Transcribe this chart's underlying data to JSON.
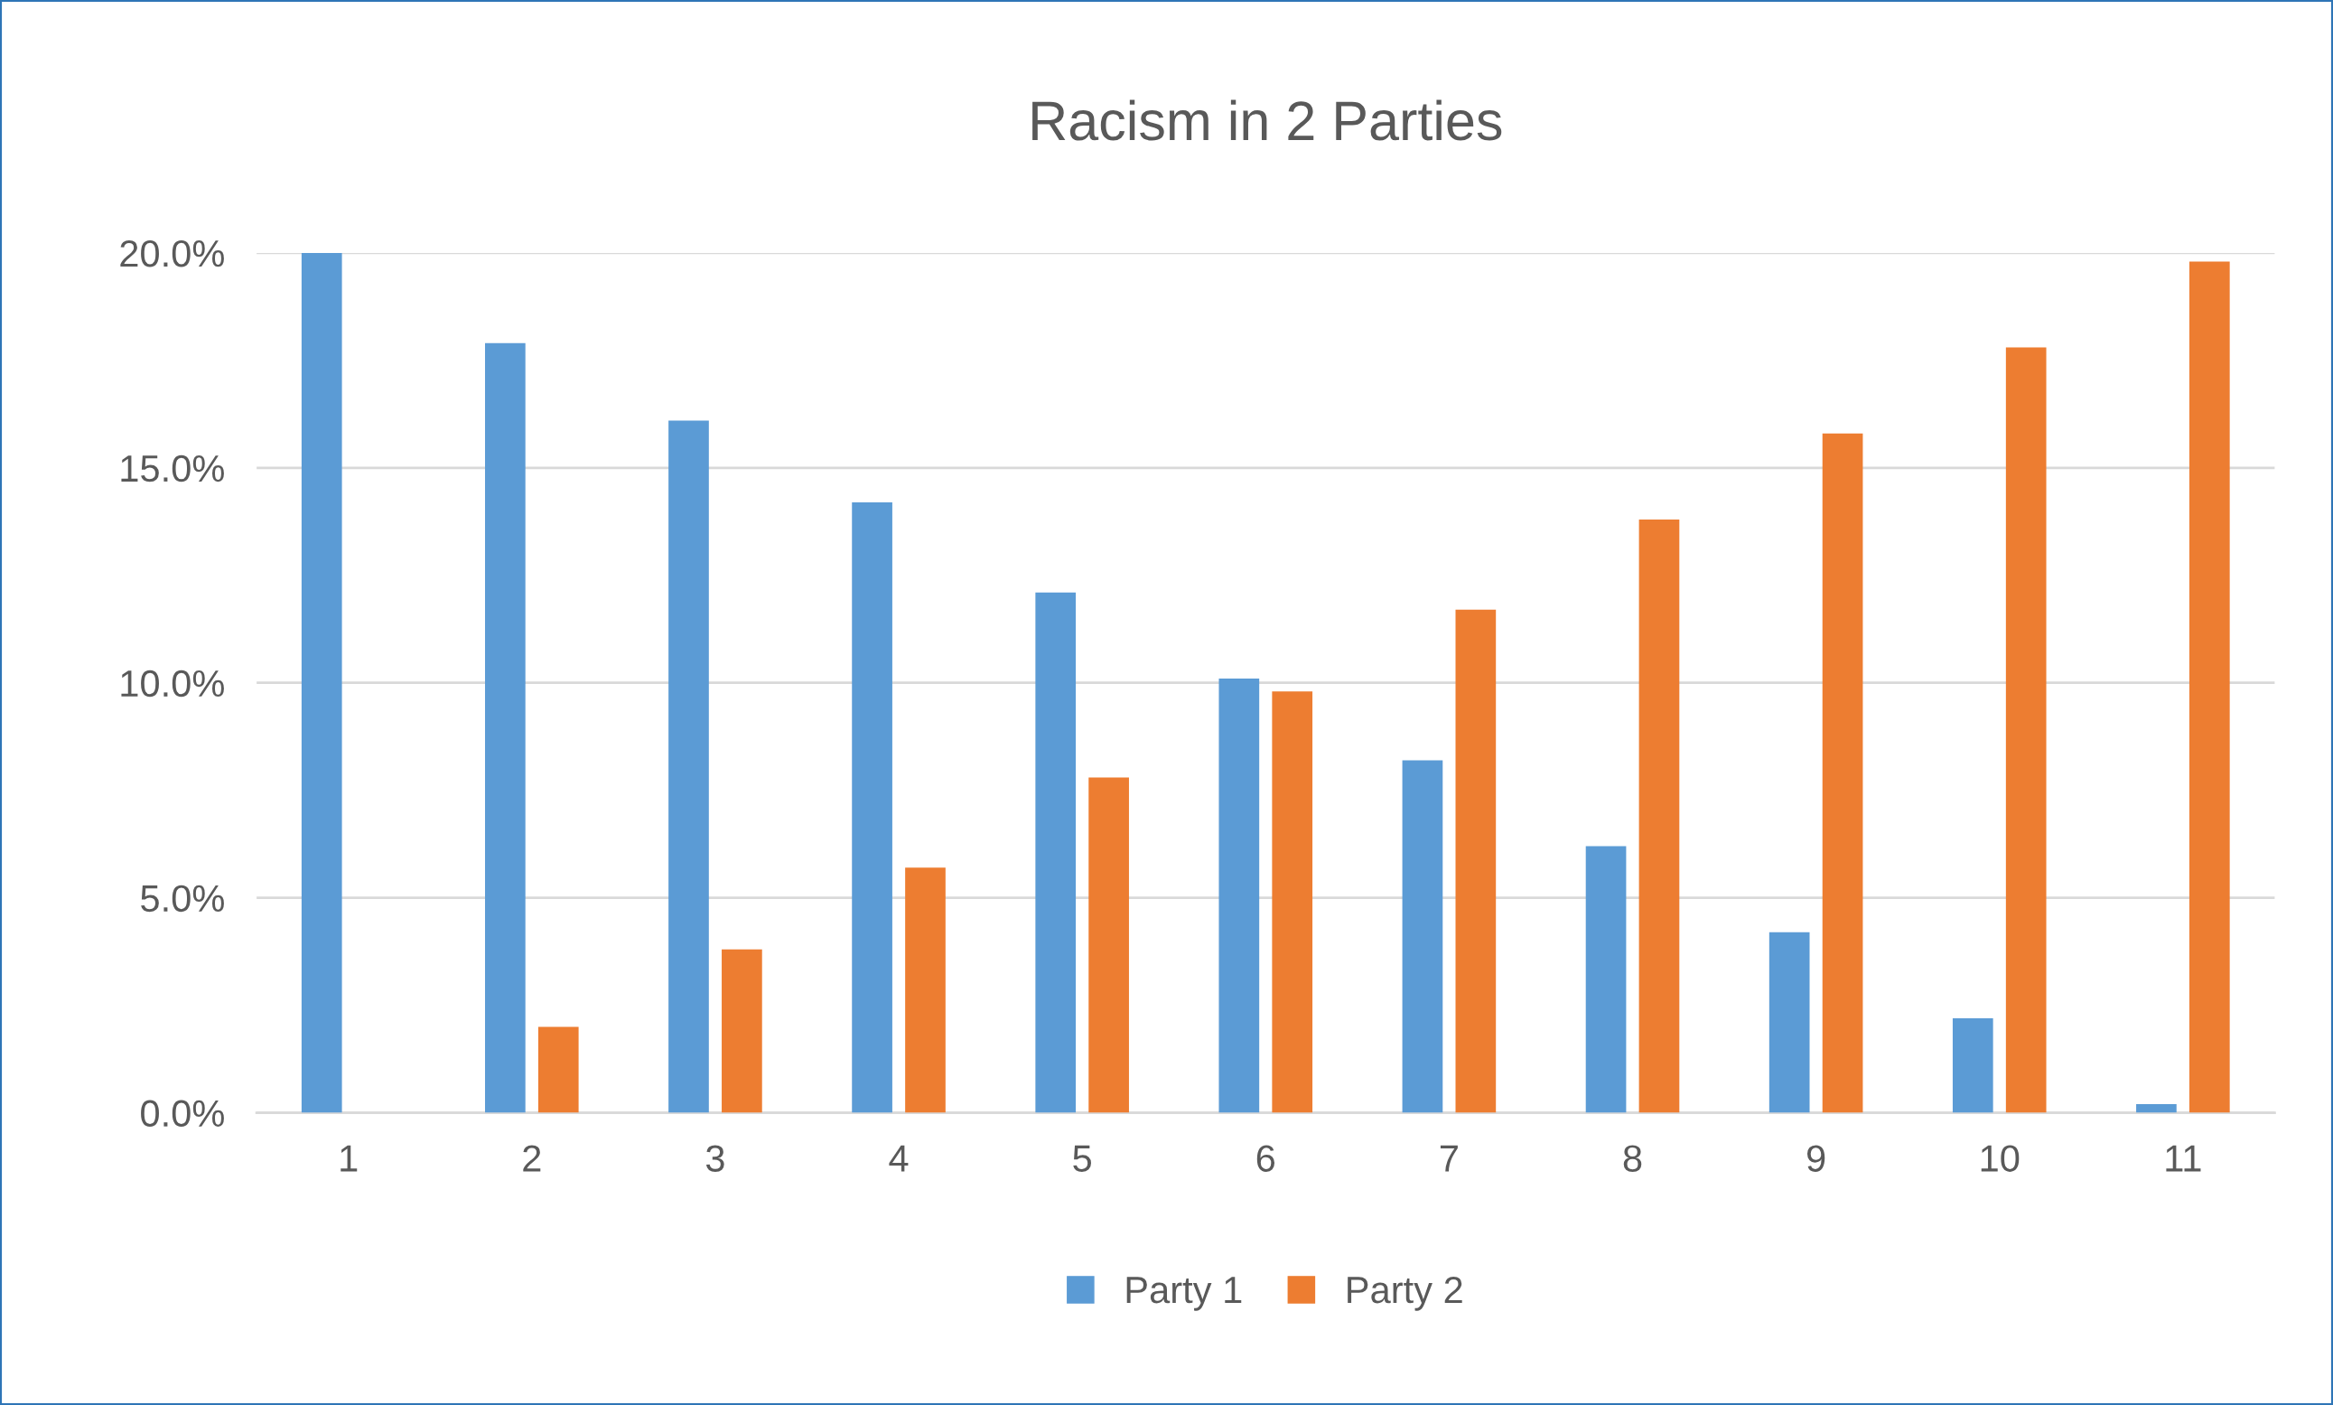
{
  "chart_data": {
    "type": "bar",
    "title": "Racism in 2 Parties",
    "categories": [
      "1",
      "2",
      "3",
      "4",
      "5",
      "6",
      "7",
      "8",
      "9",
      "10",
      "11"
    ],
    "series": [
      {
        "name": "Party 1",
        "color": "#5b9bd5",
        "values": [
          20.0,
          17.9,
          16.1,
          14.2,
          12.1,
          10.1,
          8.2,
          6.2,
          4.2,
          2.2,
          0.2
        ]
      },
      {
        "name": "Party 2",
        "color": "#ed7d31",
        "values": [
          0,
          2.0,
          3.8,
          5.7,
          7.8,
          9.8,
          11.7,
          13.8,
          15.8,
          17.8,
          19.8
        ]
      }
    ],
    "ylim": [
      0,
      20
    ],
    "yticks": [
      {
        "value": 0,
        "label": "0.0%"
      },
      {
        "value": 5,
        "label": "5.0%"
      },
      {
        "value": 10,
        "label": "10.0%"
      },
      {
        "value": 15,
        "label": "15.0%"
      },
      {
        "value": 20,
        "label": "20.0%"
      }
    ],
    "grid": "y",
    "legend": "bottom"
  }
}
